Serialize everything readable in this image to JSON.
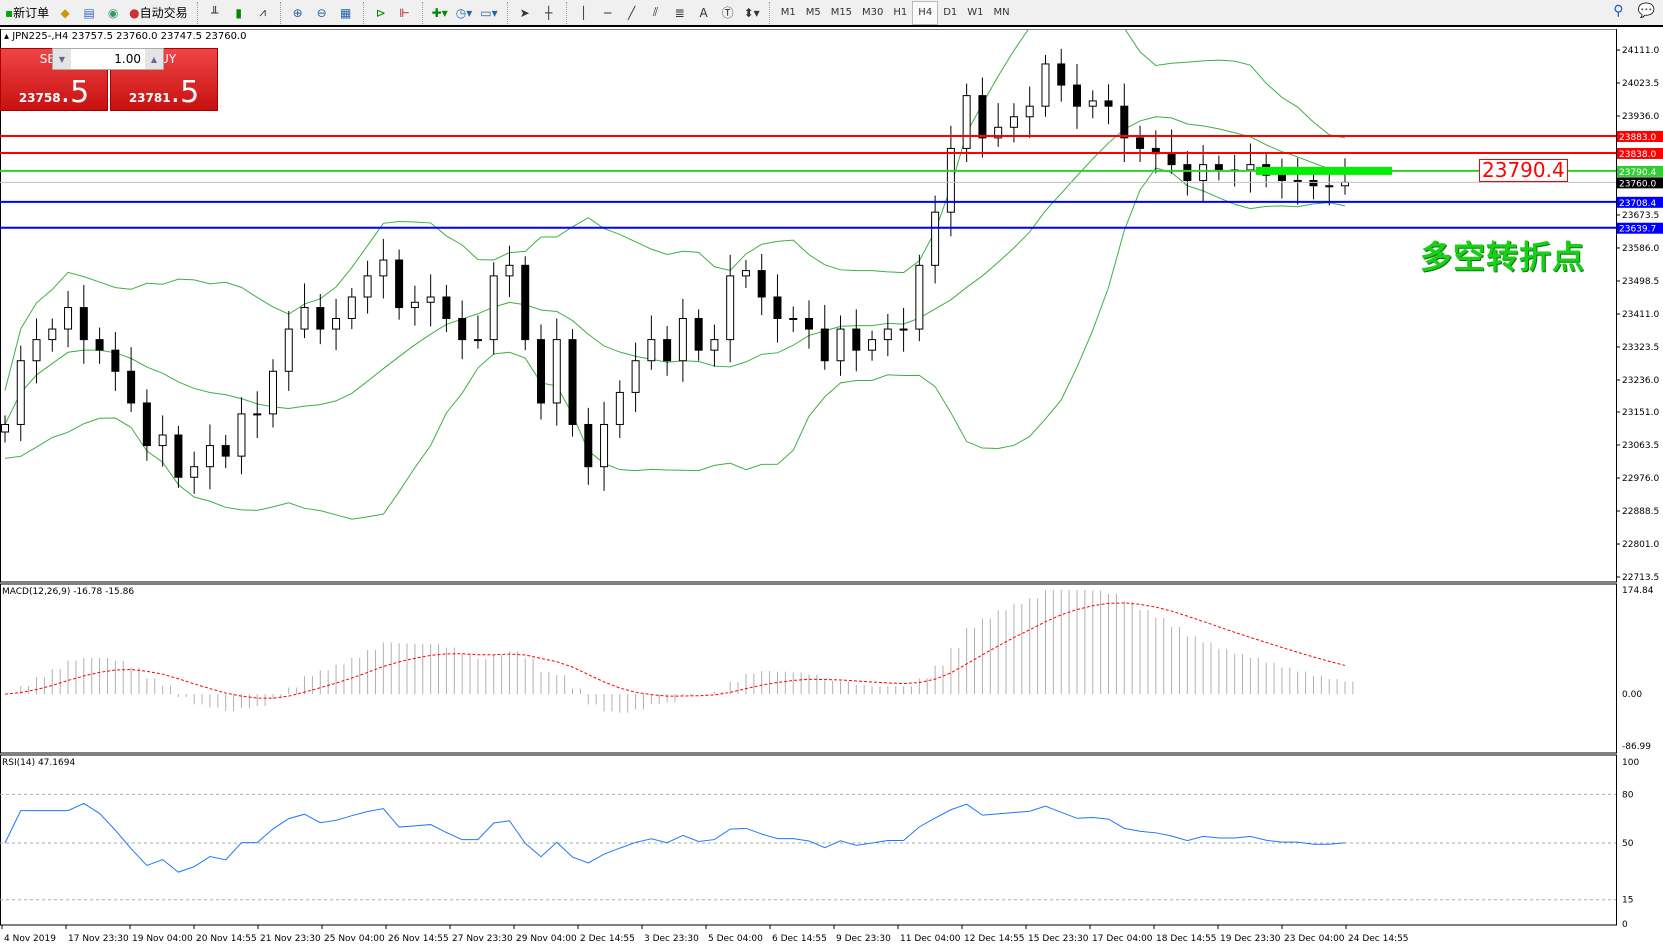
{
  "toolbar": {
    "new_order": "新订单",
    "auto_trading": "自动交易",
    "timeframes": [
      "M1",
      "M5",
      "M15",
      "M30",
      "H1",
      "H4",
      "D1",
      "W1",
      "MN"
    ],
    "active_timeframe": "H4",
    "icons": [
      "bar-chart-icon",
      "candlestick-icon",
      "line-chart-icon",
      "zoom-in-icon",
      "zoom-out-icon",
      "tile-windows-icon",
      "autoscroll-icon",
      "chart-shift-icon",
      "indicators-icon",
      "periods-icon",
      "templates-icon",
      "cursor-icon",
      "crosshair-icon",
      "vertical-line-icon",
      "horizontal-line-icon",
      "trendline-icon",
      "equidistant-channel-icon",
      "fibonacci-icon",
      "text-icon",
      "text-label-icon",
      "arrows-icon"
    ],
    "text_tool": "A",
    "search_icon": "search-icon",
    "chat_icon": "chat-icon"
  },
  "chart": {
    "header": "JPN225-,H4  23757.5 23760.0 23747.5 23760.0",
    "sell_label": "SELL",
    "buy_label": "BUY",
    "volume": "1.00",
    "sell_price_main": "23758",
    "sell_price_big": ".5",
    "buy_price_main": "23781",
    "buy_price_big": ".5",
    "annotation": "多空转折点",
    "level_label": "23790.4",
    "colors": {
      "bollinger": "#3cb043",
      "macd_signal": "#ff0000",
      "rsi": "#1e78ff",
      "up_candle": "#ffffff",
      "down_candle": "#000000"
    }
  },
  "chart_data": {
    "type": "candlestick",
    "symbol": "JPN225-",
    "timeframe": "H4",
    "price_ticks": [
      "24111.0",
      "24023.5",
      "23936.0",
      "23673.5",
      "23586.0",
      "23498.5",
      "23411.0",
      "23323.5",
      "23236.0",
      "23151.0",
      "23063.5",
      "22976.0",
      "22888.5",
      "22801.0",
      "22713.5"
    ],
    "ylim": [
      22713.5,
      24111.0
    ],
    "closes": [
      23118,
      23287,
      23343,
      23371,
      23428,
      23343,
      23315,
      23259,
      23175,
      23062,
      23090,
      22978,
      23006,
      23062,
      23034,
      23146,
      23146,
      23259,
      23371,
      23428,
      23371,
      23399,
      23456,
      23512,
      23554,
      23428,
      23442,
      23456,
      23399,
      23343,
      23343,
      23512,
      23540,
      23343,
      23175,
      23343,
      23118,
      23006,
      23118,
      23203,
      23287,
      23343,
      23287,
      23399,
      23315,
      23343,
      23512,
      23526,
      23456,
      23399,
      23399,
      23371,
      23287,
      23371,
      23315,
      23343,
      23371,
      23371,
      23540,
      23681,
      23850,
      23990,
      23878,
      23906,
      23934,
      23962,
      24074,
      24018,
      23962,
      23976,
      23962,
      23878,
      23850,
      23836,
      23807,
      23765,
      23807,
      23793,
      23793,
      23807,
      23779,
      23765,
      23765,
      23751,
      23751,
      23760
    ],
    "levels": [
      {
        "value": "23883.0",
        "color": "#ff0000"
      },
      {
        "value": "23838.0",
        "color": "#ff0000"
      },
      {
        "value": "23790.4",
        "color": "#32cd32"
      },
      {
        "value": "23760.0",
        "color": "#000000",
        "line": "#c0c0c0"
      },
      {
        "value": "23708.4",
        "color": "#0000ff"
      },
      {
        "value": "23639.7",
        "color": "#0000ff"
      }
    ],
    "time_ticks": [
      "4 Nov 2019",
      "17 Nov 23:30",
      "19 Nov 04:00",
      "20 Nov 14:55",
      "21 Nov 23:30",
      "25 Nov 04:00",
      "26 Nov 14:55",
      "27 Nov 23:30",
      "29 Nov 04:00",
      "2 Dec 14:55",
      "3 Dec 23:30",
      "5 Dec 04:00",
      "6 Dec 14:55",
      "9 Dec 23:30",
      "11 Dec 04:00",
      "12 Dec 14:55",
      "15 Dec 23:30",
      "17 Dec 04:00",
      "18 Dec 14:55",
      "19 Dec 23:30",
      "23 Dec 04:00",
      "24 Dec 14:55"
    ],
    "macd": {
      "label": "MACD(12,26,9) -16.78 -15.86",
      "ticks": [
        "174.84",
        "0.00",
        "-86.99"
      ],
      "range": [
        -86.99,
        174.84
      ]
    },
    "rsi": {
      "label": "RSI(14) 47.1694",
      "ticks": [
        "100",
        "80",
        "50",
        "15",
        "0"
      ],
      "levels": [
        80,
        50,
        15
      ]
    }
  }
}
